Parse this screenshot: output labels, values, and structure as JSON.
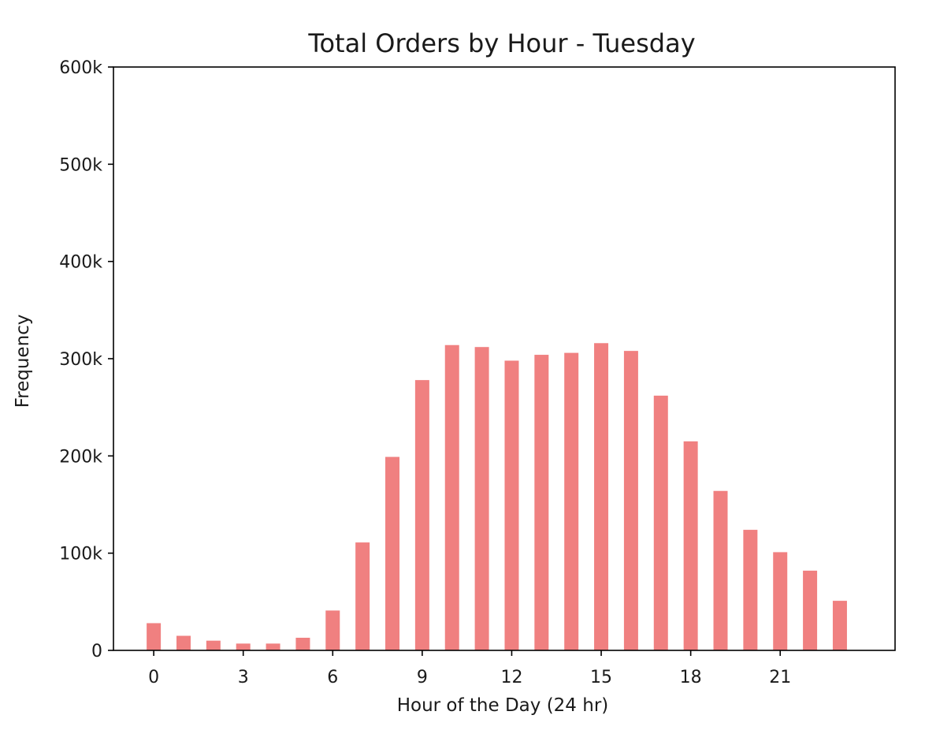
{
  "chart_data": {
    "type": "bar",
    "title": "Total Orders by Hour - Tuesday",
    "xlabel": "Hour of the Day (24 hr)",
    "ylabel": "Frequency",
    "x": [
      0,
      1,
      2,
      3,
      4,
      5,
      6,
      7,
      8,
      9,
      10,
      11,
      12,
      13,
      14,
      15,
      16,
      17,
      18,
      19,
      20,
      21,
      22,
      23
    ],
    "values": [
      28000,
      15000,
      10000,
      7000,
      7000,
      13000,
      41000,
      111000,
      199000,
      278000,
      314000,
      312000,
      298000,
      304000,
      306000,
      316000,
      308000,
      262000,
      215000,
      164000,
      124000,
      101000,
      82000,
      51000
    ],
    "ylim": [
      0,
      600000
    ],
    "xlim": [
      -1.35,
      24.85
    ],
    "xticks": [
      0,
      3,
      6,
      9,
      12,
      15,
      18,
      21
    ],
    "xtick_labels": [
      "0",
      "3",
      "6",
      "9",
      "12",
      "15",
      "18",
      "21"
    ],
    "yticks": [
      0,
      100000,
      200000,
      300000,
      400000,
      500000,
      600000
    ],
    "ytick_labels": [
      "0",
      "100k",
      "200k",
      "300k",
      "400k",
      "500k",
      "600k"
    ],
    "bar_color": "#f08080",
    "grid": false
  }
}
